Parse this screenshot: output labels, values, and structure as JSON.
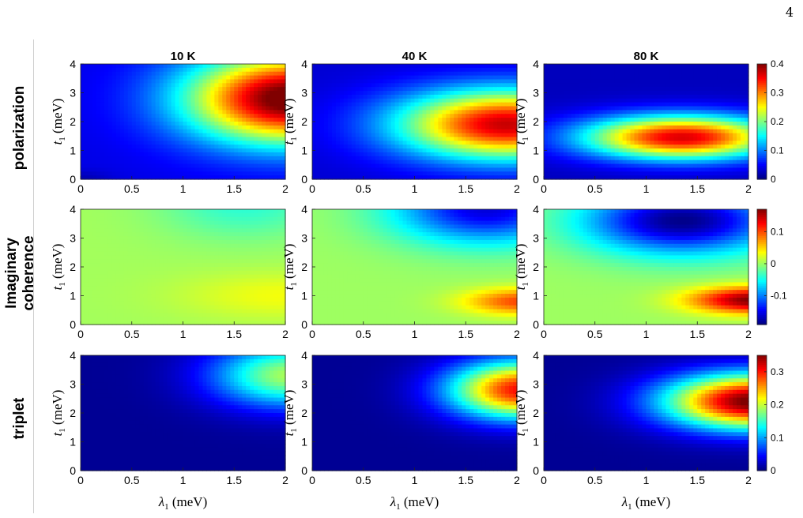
{
  "page_number": "4",
  "column_titles": [
    "10 K",
    "40 K",
    "80 K"
  ],
  "row_labels": [
    "polarization",
    "Imaginary coherence",
    "triplet"
  ],
  "colormap": "jet",
  "chart_data": [
    {
      "type": "heatmap",
      "row": "polarization",
      "title": "10 K",
      "xlabel": "λ1 (meV)",
      "ylabel": "t1 (meV)",
      "xlim": [
        0,
        2
      ],
      "ylim": [
        0,
        4
      ],
      "xticks": [
        "0",
        "0.5",
        "1",
        "1.5",
        "2"
      ],
      "yticks": [
        "0",
        "1",
        "2",
        "3",
        "4"
      ],
      "clim": [
        0,
        0.4
      ],
      "colorbar_ticks": [],
      "peak": {
        "x": 2.0,
        "y": 2.7,
        "value": 0.4
      }
    },
    {
      "type": "heatmap",
      "row": "polarization",
      "title": "40 K",
      "xlabel": "λ1 (meV)",
      "ylabel": "t1 (meV)",
      "xlim": [
        0,
        2
      ],
      "ylim": [
        0,
        4
      ],
      "xticks": [
        "0",
        "0.5",
        "1",
        "1.5",
        "2"
      ],
      "yticks": [
        "0",
        "1",
        "2",
        "3",
        "4"
      ],
      "clim": [
        0,
        0.4
      ],
      "colorbar_ticks": [],
      "peak": {
        "x": 1.9,
        "y": 1.9,
        "value": 0.37
      }
    },
    {
      "type": "heatmap",
      "row": "polarization",
      "title": "80 K",
      "xlabel": "λ1 (meV)",
      "ylabel": "t1 (meV)",
      "xlim": [
        0,
        2
      ],
      "ylim": [
        0,
        4
      ],
      "xticks": [
        "0",
        "0.5",
        "1",
        "1.5",
        "2"
      ],
      "yticks": [
        "0",
        "1",
        "2",
        "3",
        "4"
      ],
      "clim": [
        0,
        0.4
      ],
      "colorbar_ticks": [
        "0",
        "0.1",
        "0.2",
        "0.3",
        "0.4"
      ],
      "peak": {
        "x": 1.3,
        "y": 1.4,
        "value": 0.36
      }
    },
    {
      "type": "heatmap",
      "row": "Imaginary coherence",
      "title": "",
      "xlabel": "λ1 (meV)",
      "ylabel": "t1 (meV)",
      "xlim": [
        0,
        2
      ],
      "ylim": [
        0,
        4
      ],
      "xticks": [
        "0",
        "0.5",
        "1",
        "1.5",
        "2"
      ],
      "yticks": [
        "0",
        "1",
        "2",
        "3",
        "4"
      ],
      "clim": [
        -0.19,
        0.17
      ],
      "colorbar_ticks": [],
      "trough": {
        "x": 1.6,
        "y": 3.8,
        "value": -0.05
      },
      "peak": {
        "x": 2.0,
        "y": 1.0,
        "value": 0.05
      }
    },
    {
      "type": "heatmap",
      "row": "Imaginary coherence",
      "title": "",
      "xlabel": "λ1 (meV)",
      "ylabel": "t1 (meV)",
      "xlim": [
        0,
        2
      ],
      "ylim": [
        0,
        4
      ],
      "xticks": [
        "0",
        "0.5",
        "1",
        "1.5",
        "2"
      ],
      "yticks": [
        "0",
        "1",
        "2",
        "3",
        "4"
      ],
      "clim": [
        -0.19,
        0.17
      ],
      "colorbar_ticks": [],
      "trough": {
        "x": 1.6,
        "y": 3.8,
        "value": -0.17
      },
      "peak": {
        "x": 2.0,
        "y": 0.8,
        "value": 0.1
      }
    },
    {
      "type": "heatmap",
      "row": "Imaginary coherence",
      "title": "",
      "xlabel": "λ1 (meV)",
      "ylabel": "t1 (meV)",
      "xlim": [
        0,
        2
      ],
      "ylim": [
        0,
        4
      ],
      "xticks": [
        "0",
        "0.5",
        "1",
        "1.5",
        "2"
      ],
      "yticks": [
        "0",
        "1",
        "2",
        "3",
        "4"
      ],
      "clim": [
        -0.19,
        0.17
      ],
      "colorbar_ticks": [
        "0.1",
        "0",
        "-0.1"
      ],
      "trough": {
        "x": 1.3,
        "y": 3.4,
        "value": -0.19
      },
      "peak": {
        "x": 2.0,
        "y": 0.8,
        "value": 0.16
      }
    },
    {
      "type": "heatmap",
      "row": "triplet",
      "title": "",
      "xlabel": "λ1 (meV)",
      "ylabel": "t1 (meV)",
      "xlim": [
        0,
        2
      ],
      "ylim": [
        0,
        4
      ],
      "xticks": [
        "0",
        "0.5",
        "1",
        "1.5",
        "2"
      ],
      "yticks": [
        "0",
        "1",
        "2",
        "3",
        "4"
      ],
      "clim": [
        0,
        0.35
      ],
      "colorbar_ticks": [],
      "peak": {
        "x": 2.0,
        "y": 3.2,
        "value": 0.17
      }
    },
    {
      "type": "heatmap",
      "row": "triplet",
      "title": "",
      "xlabel": "λ1 (meV)",
      "ylabel": "t1 (meV)",
      "xlim": [
        0,
        2
      ],
      "ylim": [
        0,
        4
      ],
      "xticks": [
        "0",
        "0.5",
        "1",
        "1.5",
        "2"
      ],
      "yticks": [
        "0",
        "1",
        "2",
        "3",
        "4"
      ],
      "clim": [
        0,
        0.35
      ],
      "colorbar_ticks": [],
      "peak": {
        "x": 2.0,
        "y": 2.8,
        "value": 0.3
      }
    },
    {
      "type": "heatmap",
      "row": "triplet",
      "title": "",
      "xlabel": "λ1 (meV)",
      "ylabel": "t1 (meV)",
      "xlim": [
        0,
        2
      ],
      "ylim": [
        0,
        4
      ],
      "xticks": [
        "0",
        "0.5",
        "1",
        "1.5",
        "2"
      ],
      "yticks": [
        "0",
        "1",
        "2",
        "3",
        "4"
      ],
      "clim": [
        0,
        0.35
      ],
      "colorbar_ticks": [
        "0",
        "0.1",
        "0.2",
        "0.3"
      ],
      "peak": {
        "x": 2.0,
        "y": 2.3,
        "value": 0.35
      }
    }
  ]
}
